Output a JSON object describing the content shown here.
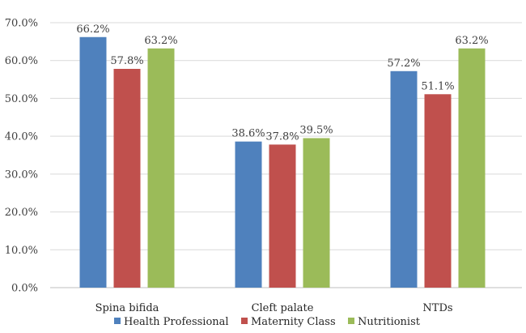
{
  "chart_data": {
    "type": "bar",
    "title": "",
    "xlabel": "",
    "ylabel": "",
    "categories": [
      "Spina bifida",
      "Cleft palate",
      "NTDs"
    ],
    "ylim": [
      0,
      70
    ],
    "yticks": [
      "0.0%",
      "10.0%",
      "20.0%",
      "30.0%",
      "40.0%",
      "50.0%",
      "60.0%",
      "70.0%"
    ],
    "grid": true,
    "legend_position": "bottom",
    "series": [
      {
        "name": "Health Professional",
        "color": "#4F81BD",
        "values": [
          66.2,
          38.6,
          57.2
        ],
        "labels": [
          "66.2%",
          "38.6%",
          "57.2%"
        ]
      },
      {
        "name": "Maternity Class",
        "color": "#C0504D",
        "values": [
          57.8,
          37.8,
          51.1
        ],
        "labels": [
          "57.8%",
          "37.8%",
          "51.1%"
        ]
      },
      {
        "name": "Nutritionist",
        "color": "#9BBB59",
        "values": [
          63.2,
          39.5,
          63.2
        ],
        "labels": [
          "63.2%",
          "39.5%",
          "63.2%"
        ]
      }
    ]
  }
}
